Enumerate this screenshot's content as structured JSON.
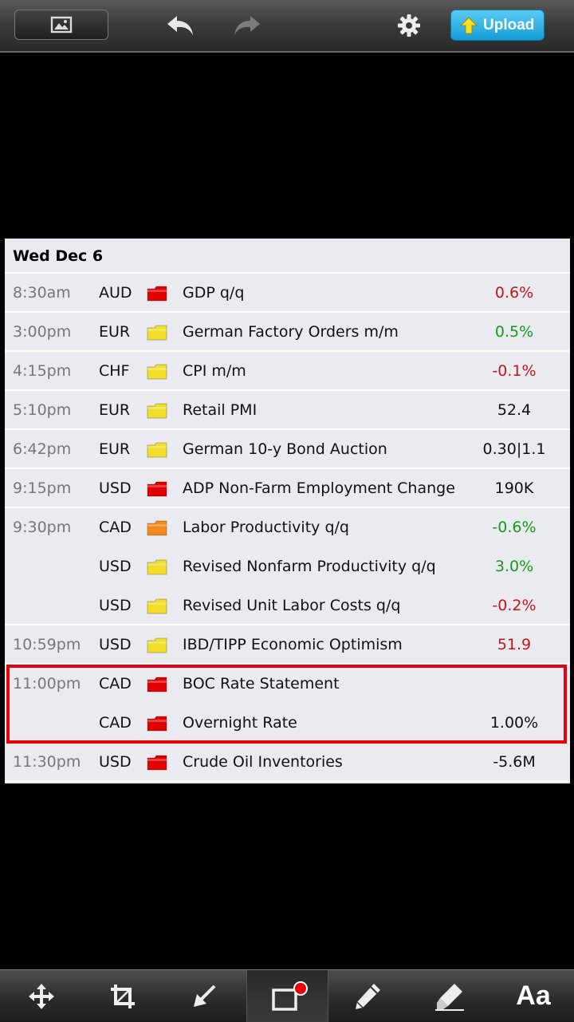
{
  "toolbar": {
    "upload_label": "Upload",
    "icons": [
      "image-icon",
      "undo-icon",
      "redo-icon",
      "gear-icon",
      "upload-arrow-icon"
    ]
  },
  "calendar": {
    "date": "Wed Dec 6",
    "rows": [
      {
        "time": "8:30am",
        "currency": "AUD",
        "impact": "high",
        "event": "GDP q/q",
        "value": "0.6%",
        "value_color": "red"
      },
      {
        "time": "3:00pm",
        "currency": "EUR",
        "impact": "low",
        "event": "German Factory Orders m/m",
        "value": "0.5%",
        "value_color": "green"
      },
      {
        "time": "4:15pm",
        "currency": "CHF",
        "impact": "low",
        "event": "CPI m/m",
        "value": "-0.1%",
        "value_color": "red"
      },
      {
        "time": "5:10pm",
        "currency": "EUR",
        "impact": "low",
        "event": "Retail PMI",
        "value": "52.4",
        "value_color": "black"
      },
      {
        "time": "6:42pm",
        "currency": "EUR",
        "impact": "low",
        "event": "German 10-y Bond Auction",
        "value": "0.30|1.1",
        "value_color": "black"
      },
      {
        "time": "9:15pm",
        "currency": "USD",
        "impact": "high",
        "event": "ADP Non-Farm Employment Change",
        "value": "190K",
        "value_color": "black"
      },
      {
        "time": "9:30pm",
        "currency": "CAD",
        "impact": "medium",
        "event": "Labor Productivity q/q",
        "value": "-0.6%",
        "value_color": "green"
      },
      {
        "time": "",
        "currency": "USD",
        "impact": "low",
        "event": "Revised Nonfarm Productivity q/q",
        "value": "3.0%",
        "value_color": "green"
      },
      {
        "time": "",
        "currency": "USD",
        "impact": "low",
        "event": "Revised Unit Labor Costs q/q",
        "value": "-0.2%",
        "value_color": "red"
      },
      {
        "time": "10:59pm",
        "currency": "USD",
        "impact": "low",
        "event": "IBD/TIPP Economic Optimism",
        "value": "51.9",
        "value_color": "red"
      },
      {
        "time": "11:00pm",
        "currency": "CAD",
        "impact": "high",
        "event": "BOC Rate Statement",
        "value": "",
        "value_color": "black"
      },
      {
        "time": "",
        "currency": "CAD",
        "impact": "high",
        "event": "Overnight Rate",
        "value": "1.00%",
        "value_color": "black"
      },
      {
        "time": "11:30pm",
        "currency": "USD",
        "impact": "high",
        "event": "Crude Oil Inventories",
        "value": "-5.6M",
        "value_color": "black"
      }
    ]
  },
  "impact_colors": {
    "high": "#e00000",
    "medium": "#f08a1c",
    "low": "#f2de2a"
  },
  "value_colors": {
    "red": "#c81414",
    "green": "#159a1a",
    "black": "#111111"
  },
  "annotation": {
    "color": "#e8000a"
  },
  "bottom_toolbar": {
    "text_tool_label": "Aa",
    "active_tool": "rectangle",
    "icons": [
      "move-icon",
      "crop-icon",
      "arrow-icon",
      "rectangle-icon",
      "pencil-icon",
      "highlighter-icon",
      "text-icon"
    ]
  }
}
